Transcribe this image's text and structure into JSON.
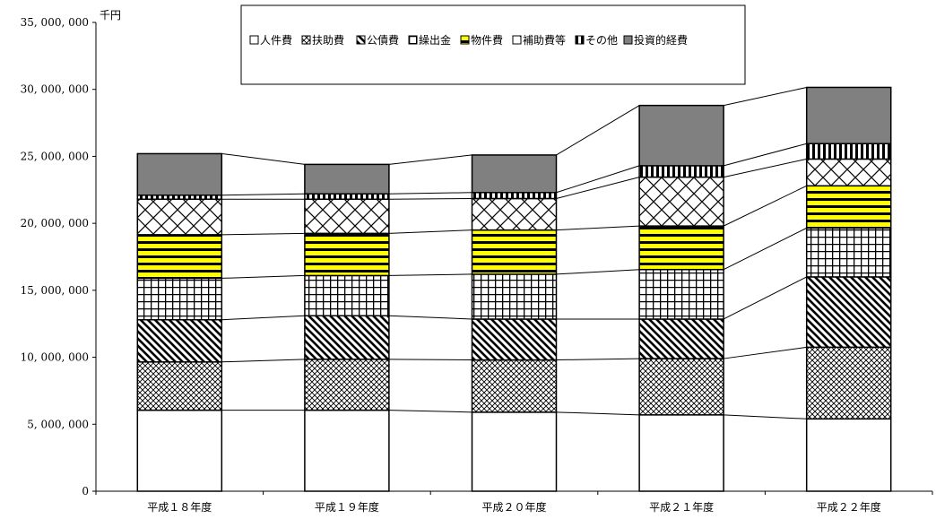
{
  "chart_data": {
    "type": "bar",
    "stacked": true,
    "unit_label": "千円",
    "categories": [
      "平成１８年度",
      "平成１９年度",
      "平成２０年度",
      "平成２１年度",
      "平成２２年度"
    ],
    "ylim": [
      0,
      35000000
    ],
    "yticks": [
      0,
      5000000,
      10000000,
      15000000,
      20000000,
      25000000,
      30000000,
      35000000
    ],
    "ytick_labels": [
      "0",
      "5, 000, 000",
      "10, 000, 000",
      "15, 000, 000",
      "20, 000, 000",
      "25, 000, 000",
      "30, 000, 000",
      "35, 000, 000"
    ],
    "legend_position": "top",
    "series_lines": true,
    "series": [
      {
        "name": "人件費",
        "pattern": "white",
        "values": [
          6050000,
          6050000,
          5900000,
          5700000,
          5400000
        ]
      },
      {
        "name": "扶助費",
        "pattern": "crosshatch-dots",
        "values": [
          3600000,
          3800000,
          3900000,
          4200000,
          5350000
        ]
      },
      {
        "name": "公債費",
        "pattern": "diagonal",
        "values": [
          3150000,
          3250000,
          3050000,
          2950000,
          5250000
        ]
      },
      {
        "name": "繰出金",
        "pattern": "grid",
        "values": [
          3100000,
          3000000,
          3350000,
          3700000,
          3650000
        ]
      },
      {
        "name": "物件費",
        "pattern": "yellow-stripes",
        "values": [
          3250000,
          3150000,
          3300000,
          3250000,
          3150000
        ]
      },
      {
        "name": "補助費等",
        "pattern": "diamond",
        "values": [
          2650000,
          2550000,
          2350000,
          3650000,
          2000000
        ]
      },
      {
        "name": "その他",
        "pattern": "vertical",
        "values": [
          300000,
          400000,
          450000,
          850000,
          1150000
        ]
      },
      {
        "name": "投資的経費",
        "pattern": "gray",
        "values": [
          3100000,
          2200000,
          2800000,
          4500000,
          4200000
        ]
      }
    ]
  }
}
